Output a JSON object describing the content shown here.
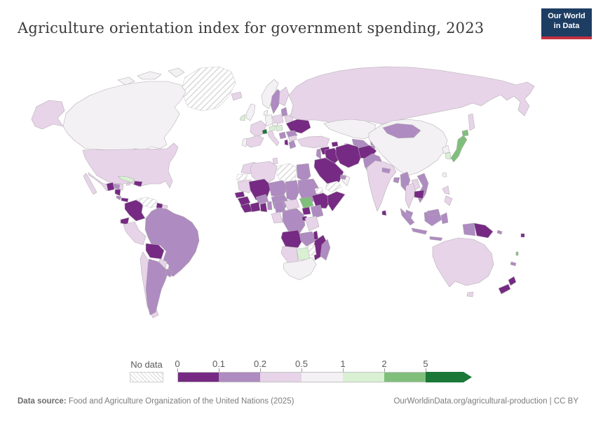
{
  "header": {
    "title": "Agriculture orientation index for government spending, 2023",
    "logo_line1": "Our World",
    "logo_line2": "in Data",
    "logo_bg": "#1d3d63",
    "logo_accent": "#c5303e"
  },
  "footer": {
    "source_label": "Data source:",
    "source_value": " Food and Agriculture Organization of the United Nations (2025)",
    "attribution": "OurWorldinData.org/agricultural-production | CC BY"
  },
  "chart_data": {
    "type": "choropleth",
    "title": "Agriculture orientation index for government spending, 2023",
    "legend": {
      "no_data_label": "No data",
      "tick_labels": [
        "0",
        "0.1",
        "0.2",
        "0.5",
        "1",
        "2",
        "5"
      ],
      "bins": [
        {
          "range": "0–0.1",
          "color": "#762a83"
        },
        {
          "range": "0.1–0.2",
          "color": "#ae8bc0"
        },
        {
          "range": "0.2–0.5",
          "color": "#e7d4e8"
        },
        {
          "range": "0.5–1",
          "color": "#f3f1f3"
        },
        {
          "range": "1–2",
          "color": "#d9f0d3"
        },
        {
          "range": "2–5",
          "color": "#7fbf7b"
        },
        {
          "range": "5+",
          "color": "#1b7837"
        }
      ],
      "no_data_pattern": "diagonal-hatch"
    },
    "countries": {
      "greenland": {
        "name": "Greenland",
        "bin": "no_data"
      },
      "canada": {
        "name": "Canada",
        "bin": 3
      },
      "usa": {
        "name": "United States",
        "bin": 2
      },
      "mexico": {
        "name": "Mexico",
        "bin": 2
      },
      "guatemala": {
        "name": "Guatemala",
        "bin": 0
      },
      "honduras": {
        "name": "Honduras",
        "bin": 1
      },
      "nicaragua": {
        "name": "Nicaragua",
        "bin": 0
      },
      "costa_rica": {
        "name": "Costa Rica",
        "bin": 1
      },
      "panama": {
        "name": "Panama",
        "bin": 0
      },
      "cuba": {
        "name": "Cuba",
        "bin": 4
      },
      "jamaica": {
        "name": "Jamaica",
        "bin": 2
      },
      "hispaniola": {
        "name": "Dominican Republic",
        "bin": 0
      },
      "trinidad": {
        "name": "Trinidad and Tobago",
        "bin": 5
      },
      "colombia": {
        "name": "Colombia",
        "bin": 0
      },
      "venezuela": {
        "name": "Venezuela",
        "bin": "no_data"
      },
      "guyana": {
        "name": "Guyana",
        "bin": 0
      },
      "suriname": {
        "name": "Suriname",
        "bin": 2
      },
      "ecuador": {
        "name": "Ecuador",
        "bin": 0
      },
      "peru": {
        "name": "Peru",
        "bin": 2
      },
      "brazil": {
        "name": "Brazil",
        "bin": 1
      },
      "bolivia": {
        "name": "Bolivia",
        "bin": 0
      },
      "paraguay": {
        "name": "Paraguay",
        "bin": 2
      },
      "chile": {
        "name": "Chile",
        "bin": 2
      },
      "argentina": {
        "name": "Argentina",
        "bin": 1
      },
      "uruguay": {
        "name": "Uruguay",
        "bin": 1
      },
      "iceland": {
        "name": "Iceland",
        "bin": 2
      },
      "uk": {
        "name": "United Kingdom",
        "bin": 3
      },
      "ireland": {
        "name": "Ireland",
        "bin": 4
      },
      "norway": {
        "name": "Norway",
        "bin": 3
      },
      "sweden": {
        "name": "Sweden",
        "bin": 1
      },
      "finland": {
        "name": "Finland",
        "bin": 2
      },
      "denmark": {
        "name": "Denmark",
        "bin": 3
      },
      "baltics": {
        "name": "Lithuania",
        "bin": 1
      },
      "belarus": {
        "name": "Belarus",
        "bin": 2
      },
      "poland": {
        "name": "Poland",
        "bin": 2
      },
      "germany": {
        "name": "Germany",
        "bin": 3
      },
      "france": {
        "name": "France",
        "bin": 2
      },
      "spain": {
        "name": "Spain",
        "bin": 2
      },
      "portugal": {
        "name": "Portugal",
        "bin": 3
      },
      "switzerland": {
        "name": "Switzerland",
        "bin": 6
      },
      "italy": {
        "name": "Italy",
        "bin": 2
      },
      "austria": {
        "name": "Austria",
        "bin": 4
      },
      "hungary": {
        "name": "Hungary",
        "bin": 4
      },
      "czechia": {
        "name": "Czechia",
        "bin": 3
      },
      "ukraine": {
        "name": "Ukraine",
        "bin": 0
      },
      "romania": {
        "name": "Romania",
        "bin": 1
      },
      "serbia": {
        "name": "Serbia",
        "bin": 1
      },
      "albania": {
        "name": "Albania",
        "bin": 0
      },
      "greece": {
        "name": "Greece",
        "bin": 1
      },
      "bulgaria": {
        "name": "Bulgaria",
        "bin": 2
      },
      "russia": {
        "name": "Russia",
        "bin": 2
      },
      "kazakhstan": {
        "name": "Kazakhstan",
        "bin": 3
      },
      "uzbekistan": {
        "name": "Uzbekistan",
        "bin": 1
      },
      "turkmenistan": {
        "name": "Turkmenistan",
        "bin": 2
      },
      "kyrgyzstan": {
        "name": "Kyrgyzstan",
        "bin": 1
      },
      "tajikistan": {
        "name": "Tajikistan",
        "bin": 1
      },
      "turkey": {
        "name": "Turkey",
        "bin": 2
      },
      "azerbaijan": {
        "name": "Azerbaijan",
        "bin": 0
      },
      "syria": {
        "name": "Syria",
        "bin": 0
      },
      "jordan": {
        "name": "Jordan",
        "bin": 1
      },
      "iraq": {
        "name": "Iraq",
        "bin": 0
      },
      "iran": {
        "name": "Iran",
        "bin": 0
      },
      "afghanistan": {
        "name": "Afghanistan",
        "bin": 0
      },
      "pakistan": {
        "name": "Pakistan",
        "bin": 1
      },
      "saudi_arabia": {
        "name": "Saudi Arabia",
        "bin": 0
      },
      "yemen": {
        "name": "Yemen",
        "bin": "no_data"
      },
      "oman": {
        "name": "Oman",
        "bin": 3
      },
      "uae": {
        "name": "United Arab Emirates",
        "bin": 1
      },
      "china": {
        "name": "China",
        "bin": 3
      },
      "mongolia": {
        "name": "Mongolia",
        "bin": 1
      },
      "north_korea": {
        "name": "North Korea",
        "bin": 3
      },
      "south_korea": {
        "name": "South Korea",
        "bin": 4
      },
      "japan": {
        "name": "Japan",
        "bin": 5
      },
      "taiwan": {
        "name": "Taiwan",
        "bin": 3
      },
      "india": {
        "name": "India",
        "bin": 2
      },
      "nepal": {
        "name": "Nepal",
        "bin": 1
      },
      "bangladesh": {
        "name": "Bangladesh",
        "bin": 1
      },
      "sri_lanka": {
        "name": "Sri Lanka",
        "bin": 0
      },
      "myanmar": {
        "name": "Myanmar",
        "bin": 1
      },
      "thailand": {
        "name": "Thailand",
        "bin": 2
      },
      "laos": {
        "name": "Laos",
        "bin": 2
      },
      "cambodia": {
        "name": "Cambodia",
        "bin": 0
      },
      "vietnam": {
        "name": "Vietnam",
        "bin": 1
      },
      "malaysia": {
        "name": "Malaysia",
        "bin": 1
      },
      "indonesia": {
        "name": "Indonesia",
        "bin": 1
      },
      "philippines": {
        "name": "Philippines",
        "bin": 2
      },
      "papua_new_guinea": {
        "name": "Papua New Guinea",
        "bin": 0
      },
      "australia": {
        "name": "Australia",
        "bin": 2
      },
      "new_zealand": {
        "name": "New Zealand",
        "bin": 0
      },
      "fiji": {
        "name": "Fiji",
        "bin": 0
      },
      "vanuatu": {
        "name": "Vanuatu",
        "bin": 5
      },
      "new_caledonia": {
        "name": "New Caledonia",
        "bin": 1
      },
      "solomon_islands": {
        "name": "Solomon Islands",
        "bin": 1
      },
      "morocco": {
        "name": "Morocco",
        "bin": 2
      },
      "western_sahara": {
        "name": "Western Sahara",
        "bin": "no_data"
      },
      "algeria": {
        "name": "Algeria",
        "bin": 2
      },
      "tunisia": {
        "name": "Tunisia",
        "bin": 2
      },
      "libya": {
        "name": "Libya",
        "bin": "no_data"
      },
      "egypt": {
        "name": "Egypt",
        "bin": 1
      },
      "mauritania": {
        "name": "Mauritania",
        "bin": 2
      },
      "senegal": {
        "name": "Senegal",
        "bin": 0
      },
      "guinea": {
        "name": "Guinea",
        "bin": 0
      },
      "sierra_leone": {
        "name": "Sierra Leone",
        "bin": 0
      },
      "mali": {
        "name": "Mali",
        "bin": 0
      },
      "burkina_faso": {
        "name": "Burkina Faso",
        "bin": 1
      },
      "cote_divoire": {
        "name": "Cote d'Ivoire",
        "bin": 0
      },
      "ghana": {
        "name": "Ghana",
        "bin": 0
      },
      "benin": {
        "name": "Benin",
        "bin": 1
      },
      "niger": {
        "name": "Niger",
        "bin": 1
      },
      "nigeria": {
        "name": "Nigeria",
        "bin": 1
      },
      "chad": {
        "name": "Chad",
        "bin": 1
      },
      "sudan": {
        "name": "Sudan",
        "bin": 1
      },
      "eritrea": {
        "name": "Eritrea",
        "bin": "no_data"
      },
      "ethiopia": {
        "name": "Ethiopia",
        "bin": 0
      },
      "somalia": {
        "name": "Somalia",
        "bin": 0
      },
      "south_sudan": {
        "name": "South Sudan",
        "bin": 5
      },
      "central_african_republic": {
        "name": "Central African Republic",
        "bin": 2
      },
      "cameroon": {
        "name": "Cameroon",
        "bin": 1
      },
      "gabon": {
        "name": "Gabon",
        "bin": 2
      },
      "uganda": {
        "name": "Uganda",
        "bin": 0
      },
      "kenya": {
        "name": "Kenya",
        "bin": 1
      },
      "drc": {
        "name": "Democratic Republic of Congo",
        "bin": 1
      },
      "rwanda": {
        "name": "Rwanda",
        "bin": 0
      },
      "tanzania": {
        "name": "Tanzania",
        "bin": 2
      },
      "angola": {
        "name": "Angola",
        "bin": 0
      },
      "zambia": {
        "name": "Zambia",
        "bin": 1
      },
      "malawi": {
        "name": "Malawi",
        "bin": 0
      },
      "mozambique": {
        "name": "Mozambique",
        "bin": 0
      },
      "zimbabwe": {
        "name": "Zimbabwe",
        "bin": "no_data"
      },
      "botswana": {
        "name": "Botswana",
        "bin": 4
      },
      "namibia": {
        "name": "Namibia",
        "bin": 2
      },
      "south_africa": {
        "name": "South Africa",
        "bin": 3
      },
      "madagascar": {
        "name": "Madagascar",
        "bin": 1
      }
    }
  }
}
